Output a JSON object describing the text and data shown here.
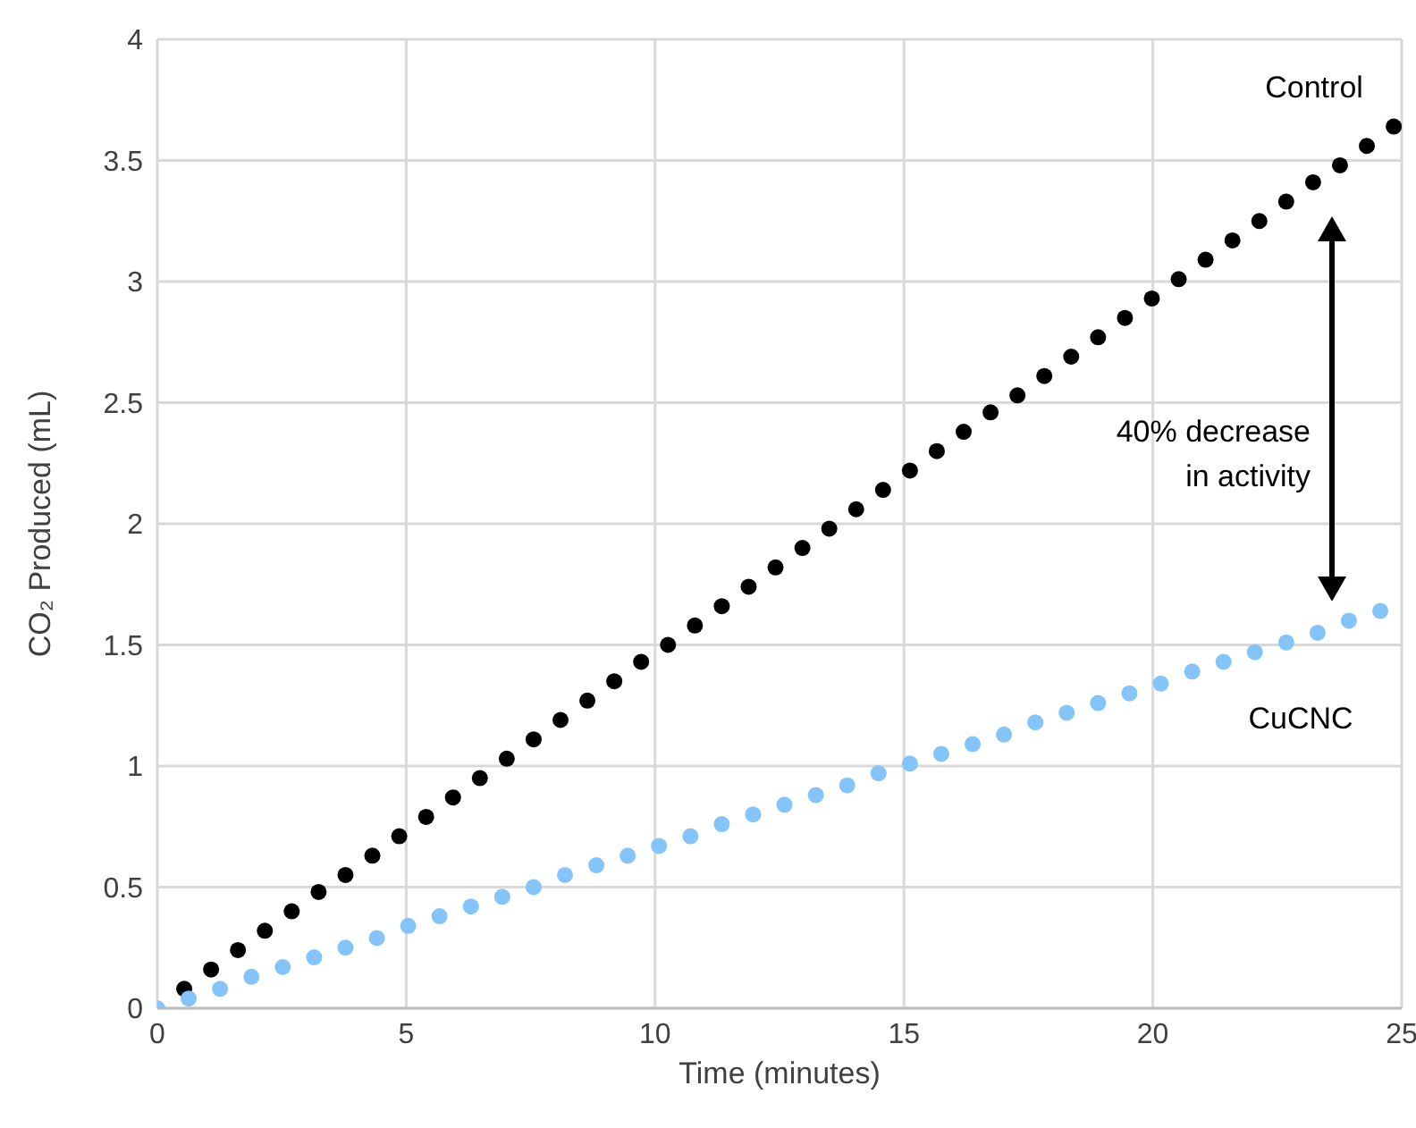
{
  "chart_data": {
    "type": "scatter",
    "xlabel": "Time (minutes)",
    "ylabel": "CO₂ Produced (mL)",
    "xlim": [
      0,
      25
    ],
    "xticks": [
      0,
      5,
      10,
      15,
      20,
      25
    ],
    "ylim": [
      0,
      4
    ],
    "yticks": [
      0,
      0.5,
      1,
      1.5,
      2,
      2.5,
      3,
      3.5,
      4
    ],
    "grid": true,
    "legend": false,
    "marker": "circle",
    "series": [
      {
        "name": "Control",
        "color": "#000000",
        "x": [
          0.54,
          1.08,
          1.62,
          2.16,
          2.7,
          3.24,
          3.78,
          4.32,
          4.86,
          5.4,
          5.94,
          6.48,
          7.02,
          7.56,
          8.1,
          8.64,
          9.18,
          9.72,
          10.26,
          10.8,
          11.34,
          11.88,
          12.42,
          12.96,
          13.5,
          14.04,
          14.58,
          15.12,
          15.66,
          16.2,
          16.74,
          17.28,
          17.82,
          18.36,
          18.9,
          19.44,
          19.98,
          20.52,
          21.06,
          21.6,
          22.14,
          22.68,
          23.22,
          23.76,
          24.3,
          24.84
        ],
        "values": [
          0.08,
          0.16,
          0.24,
          0.32,
          0.4,
          0.48,
          0.55,
          0.63,
          0.71,
          0.79,
          0.87,
          0.95,
          1.03,
          1.11,
          1.19,
          1.27,
          1.35,
          1.43,
          1.5,
          1.58,
          1.66,
          1.74,
          1.82,
          1.9,
          1.98,
          2.06,
          2.14,
          2.22,
          2.3,
          2.38,
          2.46,
          2.53,
          2.61,
          2.69,
          2.77,
          2.85,
          2.93,
          3.01,
          3.09,
          3.17,
          3.25,
          3.33,
          3.41,
          3.48,
          3.56,
          3.64
        ]
      },
      {
        "name": "CuCNC",
        "color": "#85c4f8",
        "x": [
          0,
          0.63,
          1.26,
          1.89,
          2.52,
          3.15,
          3.78,
          4.41,
          5.04,
          5.67,
          6.3,
          6.93,
          7.56,
          8.19,
          8.82,
          9.45,
          10.08,
          10.71,
          11.34,
          11.97,
          12.6,
          13.23,
          13.86,
          14.49,
          15.12,
          15.75,
          16.38,
          17.01,
          17.64,
          18.27,
          18.9,
          19.53,
          20.16,
          20.79,
          21.42,
          22.05,
          22.68,
          23.31,
          23.94,
          24.57
        ],
        "values": [
          0,
          0.04,
          0.08,
          0.13,
          0.17,
          0.21,
          0.25,
          0.29,
          0.34,
          0.38,
          0.42,
          0.46,
          0.5,
          0.55,
          0.59,
          0.63,
          0.67,
          0.71,
          0.76,
          0.8,
          0.84,
          0.88,
          0.92,
          0.97,
          1.01,
          1.05,
          1.09,
          1.13,
          1.18,
          1.22,
          1.26,
          1.3,
          1.34,
          1.39,
          1.43,
          1.47,
          1.51,
          1.55,
          1.6,
          1.64
        ]
      }
    ],
    "annotations": [
      "40% decrease in activity"
    ]
  }
}
